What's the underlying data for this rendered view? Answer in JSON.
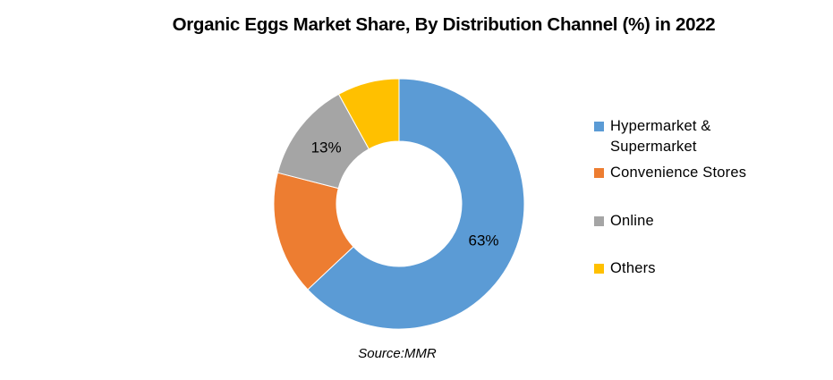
{
  "title": "Organic Eggs Market Share, By Distribution Channel (%) in 2022",
  "source_note": "Source:MMR",
  "chart_data": {
    "type": "pie",
    "subtype": "donut",
    "hole_ratio": 0.5,
    "title": "Organic Eggs Market Share, By Distribution Channel (%) in 2022",
    "categories": [
      "Hypermarket & Supermarket",
      "Convenience Stores",
      "Online",
      "Others"
    ],
    "values": [
      63,
      16,
      13,
      8
    ],
    "colors": [
      "#5B9BD5",
      "#ED7D31",
      "#A5A5A5",
      "#FFC000"
    ],
    "visible_labels": [
      "63%",
      "",
      "13%",
      ""
    ],
    "start_angle_deg": 0,
    "direction": "clockwise",
    "legend_position": "right",
    "background": "#FFFFFF"
  }
}
